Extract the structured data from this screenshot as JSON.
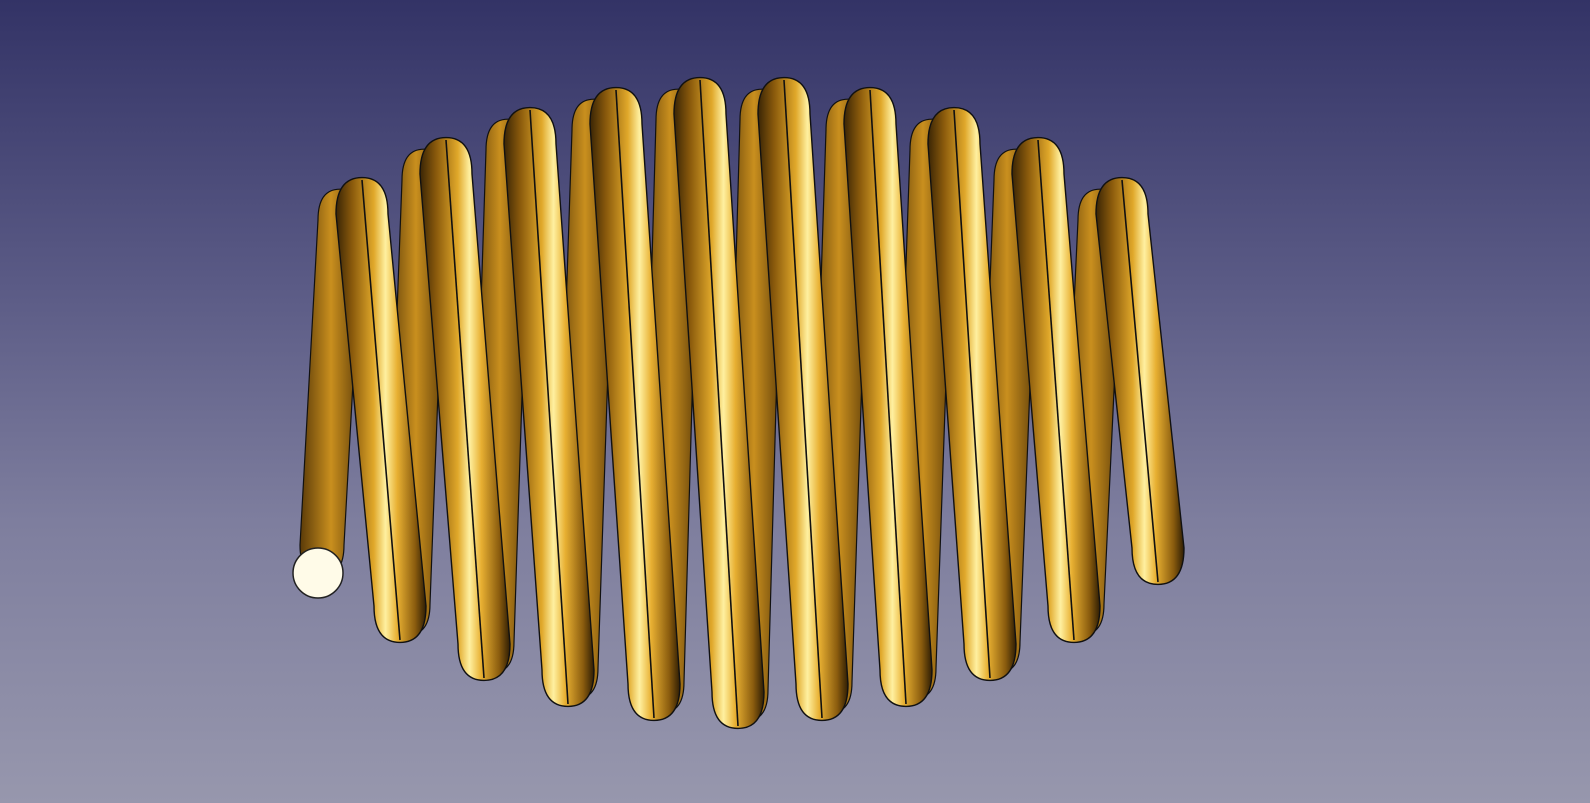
{
  "viewport": {
    "background_top": "#333366",
    "background_bottom": "#9797ad"
  },
  "model": {
    "type": "helical-spring",
    "turns": 10,
    "color": "#d9a21e",
    "edge_color": "#111111",
    "selected_end_face_color": "#fffbe8"
  }
}
